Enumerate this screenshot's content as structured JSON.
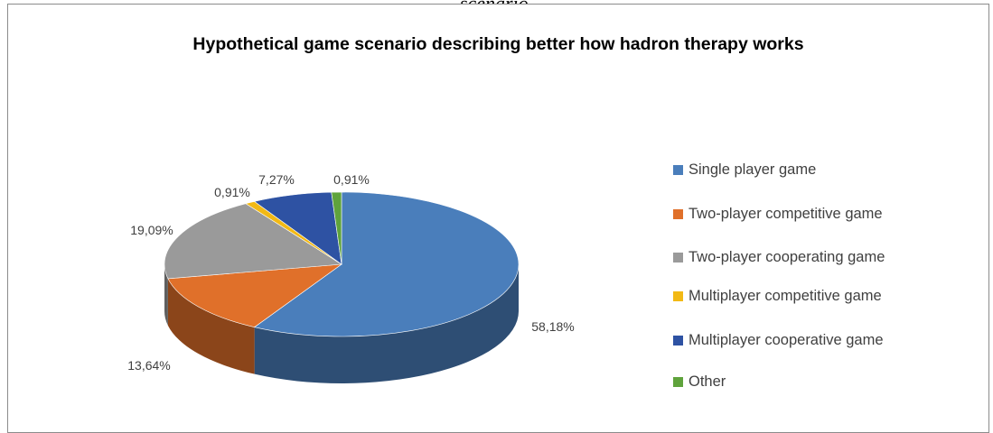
{
  "caption_fragment": "scenario.",
  "chart_data": {
    "type": "pie",
    "title": "Hypothetical game scenario describing better how hadron therapy works",
    "legend_position": "right",
    "series": [
      {
        "name": "Single player game",
        "value": 58.18,
        "label": "58,18%",
        "color": "#4a7ebb"
      },
      {
        "name": "Two-player competitive game",
        "value": 13.64,
        "label": "13,64%",
        "color": "#e0702a"
      },
      {
        "name": "Two-player cooperating game",
        "value": 19.09,
        "label": "19,09%",
        "color": "#9a9a9a"
      },
      {
        "name": "Multiplayer competitive game",
        "value": 0.91,
        "label": "0,91%",
        "color": "#f2b915"
      },
      {
        "name": "Multiplayer cooperative game",
        "value": 7.27,
        "label": "7,27%",
        "color": "#2e52a3"
      },
      {
        "name": "Other",
        "value": 0.91,
        "label": "0,91%",
        "color": "#5fa33c"
      }
    ]
  }
}
